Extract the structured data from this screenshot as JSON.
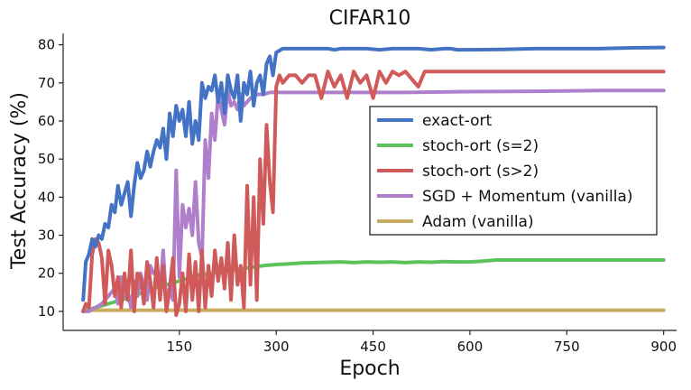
{
  "chart_data": {
    "type": "line",
    "title": "CIFAR10",
    "xlabel": "Epoch",
    "ylabel": "Test Accuracy (%)",
    "xlim": [
      -30,
      920
    ],
    "ylim": [
      5,
      83
    ],
    "xticks": [
      150,
      300,
      450,
      600,
      750,
      900
    ],
    "yticks": [
      10,
      20,
      30,
      40,
      50,
      60,
      70,
      80
    ],
    "grid": false,
    "legend_position": "center-right",
    "series": [
      {
        "name": "exact-ort",
        "color": "#4472c4",
        "x": [
          1,
          5,
          10,
          15,
          20,
          25,
          30,
          35,
          40,
          45,
          50,
          55,
          60,
          65,
          70,
          75,
          80,
          85,
          90,
          95,
          100,
          105,
          110,
          115,
          120,
          125,
          130,
          135,
          140,
          145,
          150,
          155,
          160,
          165,
          170,
          175,
          180,
          185,
          190,
          195,
          200,
          205,
          210,
          215,
          220,
          225,
          230,
          235,
          240,
          245,
          250,
          255,
          260,
          265,
          270,
          275,
          280,
          285,
          290,
          295,
          300,
          310,
          320,
          330,
          340,
          350,
          360,
          370,
          380,
          390,
          400,
          420,
          440,
          460,
          480,
          500,
          520,
          540,
          560,
          570,
          580,
          600,
          650,
          700,
          750,
          800,
          850,
          900
        ],
        "y": [
          13,
          23,
          25,
          29,
          27,
          30,
          29,
          33,
          32,
          38,
          36,
          43,
          38,
          41,
          44,
          35,
          43,
          49,
          45,
          47,
          52,
          48,
          52,
          55,
          53,
          58,
          50,
          62,
          56,
          64,
          60,
          63,
          56,
          65,
          54,
          60,
          55,
          70,
          66,
          69,
          68,
          72,
          65,
          70,
          62,
          72,
          68,
          66,
          72,
          60,
          70,
          67,
          73,
          64,
          70,
          72,
          67,
          75,
          77,
          72,
          78,
          79,
          79,
          79,
          79,
          79,
          79,
          79,
          79,
          78.7,
          79,
          79,
          79,
          78.7,
          79,
          79,
          79,
          78.7,
          79,
          79,
          78.7,
          78.7,
          78.8,
          79,
          79,
          79,
          79.2,
          79.3
        ]
      },
      {
        "name": "stoch-ort (s=2)",
        "color": "#5cc35c",
        "x": [
          1,
          20,
          40,
          60,
          80,
          100,
          120,
          140,
          160,
          180,
          200,
          220,
          240,
          260,
          280,
          300,
          320,
          340,
          360,
          380,
          400,
          420,
          440,
          460,
          480,
          500,
          520,
          540,
          560,
          580,
          600,
          620,
          640,
          660,
          700,
          750,
          800,
          850,
          900
        ],
        "y": [
          10,
          11,
          12,
          13,
          14,
          15.5,
          16.5,
          17.5,
          18.5,
          19.5,
          20,
          20.5,
          21,
          21.5,
          22,
          22.3,
          22.5,
          22.7,
          22.8,
          22.9,
          23,
          22.8,
          23,
          22.9,
          23,
          22.8,
          23,
          22.9,
          23.1,
          23,
          23,
          23.2,
          23.5,
          23.5,
          23.5,
          23.5,
          23.5,
          23.5,
          23.5
        ]
      },
      {
        "name": "stoch-ort (s>2)",
        "color": "#d05a5a",
        "x": [
          1,
          5,
          10,
          15,
          20,
          25,
          30,
          35,
          40,
          45,
          50,
          55,
          60,
          65,
          70,
          75,
          80,
          85,
          90,
          95,
          100,
          105,
          110,
          115,
          120,
          125,
          130,
          135,
          140,
          145,
          150,
          155,
          160,
          165,
          170,
          175,
          180,
          185,
          190,
          195,
          200,
          205,
          210,
          215,
          220,
          225,
          230,
          235,
          240,
          245,
          250,
          255,
          260,
          265,
          270,
          275,
          280,
          285,
          290,
          295,
          300,
          305,
          310,
          320,
          330,
          340,
          350,
          360,
          370,
          380,
          390,
          400,
          410,
          420,
          430,
          440,
          450,
          460,
          470,
          480,
          490,
          500,
          510,
          520,
          530,
          540,
          550,
          600,
          650,
          700,
          750,
          800,
          850,
          900
        ],
        "y": [
          10,
          12,
          11,
          25,
          29,
          28,
          24,
          12,
          26,
          22,
          14,
          19,
          11,
          20,
          13,
          26,
          10,
          20,
          19,
          12,
          23,
          18,
          11,
          24,
          13,
          22,
          10,
          16,
          24,
          9,
          12,
          20,
          10,
          25,
          13,
          23,
          10,
          26,
          11,
          22,
          14,
          26,
          18,
          24,
          16,
          28,
          13,
          30,
          17,
          22,
          11,
          43,
          17,
          40,
          13,
          50,
          33,
          59,
          44,
          36,
          69,
          72,
          70,
          72,
          72,
          70,
          72,
          72,
          66,
          73,
          69,
          72,
          66,
          73,
          70,
          72,
          66,
          73,
          70,
          73,
          72,
          73,
          71,
          69,
          73,
          73,
          73,
          73,
          73,
          73,
          73,
          73,
          73,
          73
        ]
      },
      {
        "name": "SGD + Momentum (vanilla)",
        "color": "#b07fcc",
        "x": [
          1,
          10,
          20,
          30,
          40,
          50,
          55,
          60,
          65,
          70,
          75,
          80,
          85,
          90,
          95,
          100,
          105,
          110,
          115,
          120,
          125,
          130,
          135,
          140,
          145,
          150,
          155,
          160,
          165,
          170,
          175,
          180,
          185,
          190,
          195,
          200,
          205,
          210,
          215,
          220,
          225,
          230,
          235,
          240,
          245,
          250,
          260,
          270,
          280,
          290,
          300,
          350,
          400,
          450,
          500,
          600,
          700,
          800,
          900
        ],
        "y": [
          10,
          10,
          11,
          12,
          14,
          16,
          12,
          19,
          14,
          15,
          11,
          18,
          14,
          20,
          16,
          13,
          22,
          20,
          21,
          15,
          26,
          12,
          16,
          13,
          47,
          19,
          38,
          32,
          37,
          30,
          44,
          28,
          24,
          55,
          45,
          62,
          55,
          67,
          63,
          59,
          68,
          64,
          65,
          63,
          67,
          64,
          66,
          67,
          67,
          67.5,
          67.5,
          67.5,
          67.5,
          67.5,
          67.5,
          67.7,
          67.8,
          68,
          68
        ]
      },
      {
        "name": "Adam (vanilla)",
        "color": "#c9ad5f",
        "x": [
          1,
          900
        ],
        "y": [
          10.3,
          10.3
        ]
      }
    ]
  }
}
